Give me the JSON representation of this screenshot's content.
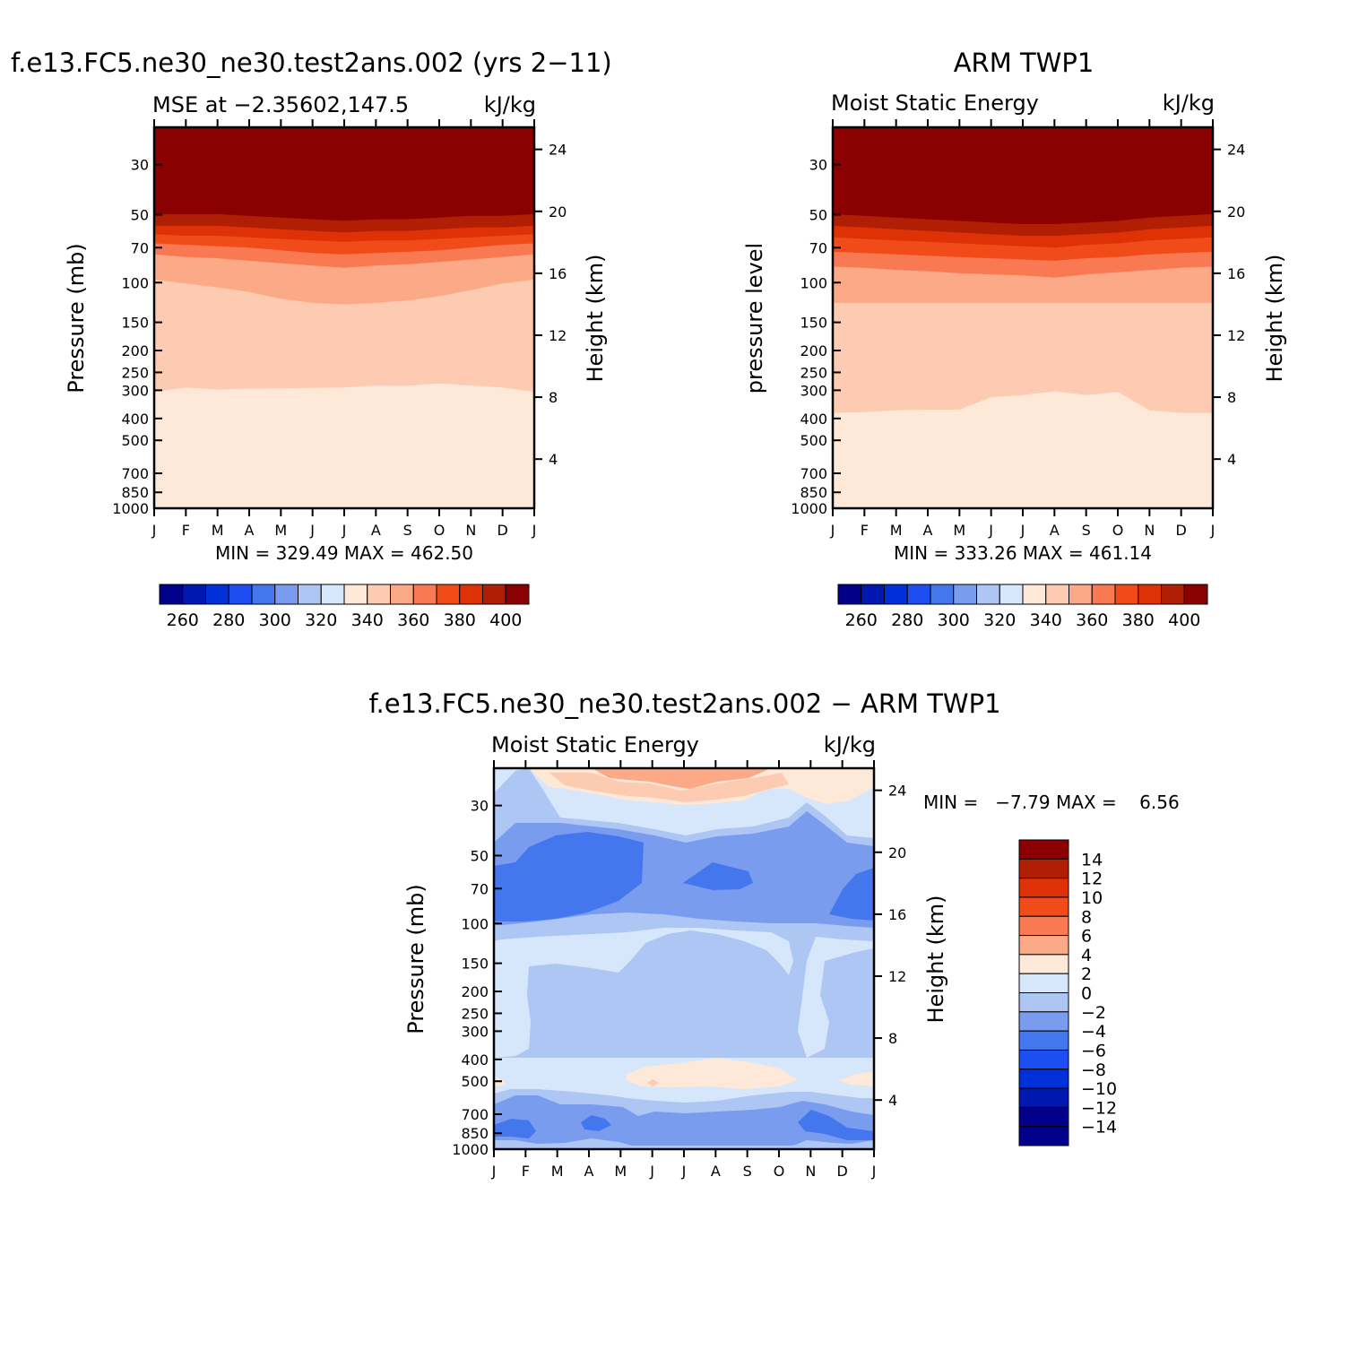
{
  "chart_data": [
    {
      "type": "heatmap",
      "id": "model",
      "title": "f.e13.FC5.ne30_ne30.test2ans.002 (yrs 2−11)",
      "subtitle_left": "MSE at −2.35602,147.5",
      "subtitle_right": "kJ/kg",
      "ylabel": "Pressure (mb)",
      "ylabel_right": "Height (km)",
      "x_ticks": [
        "J",
        "F",
        "M",
        "A",
        "M",
        "J",
        "J",
        "A",
        "S",
        "O",
        "N",
        "D",
        "J"
      ],
      "y_ticks": [
        "30",
        "50",
        "70",
        "100",
        "150",
        "200",
        "250",
        "300",
        "400",
        "500",
        "700",
        "850",
        "1000"
      ],
      "height_ticks": [
        "24",
        "20",
        "16",
        "12",
        "8",
        "4"
      ],
      "stats": "MIN = 329.49 MAX = 462.50",
      "colorbar_labels": [
        "260",
        "280",
        "300",
        "320",
        "340",
        "360",
        "380",
        "400"
      ],
      "contour_levels": [
        250,
        260,
        270,
        280,
        290,
        300,
        310,
        320,
        330,
        340,
        350,
        360,
        370,
        380,
        390,
        400
      ],
      "profile_note": "contour level boundaries (mb) by month J..J",
      "boundaries": [
        {
          "level": 340,
          "p": [
            305,
            292,
            298,
            295,
            294,
            293,
            292,
            286,
            287,
            280,
            286,
            292,
            305
          ]
        },
        {
          "level": 350,
          "p": [
            97,
            101,
            105,
            110,
            118,
            123,
            125,
            123,
            120,
            115,
            108,
            101,
            97
          ]
        },
        {
          "level": 360,
          "p": [
            75,
            77,
            78,
            80,
            82,
            84,
            86,
            84,
            83,
            81,
            79,
            77,
            75
          ]
        },
        {
          "level": 370,
          "p": [
            67,
            68,
            69,
            70,
            72,
            74,
            75,
            74,
            73,
            72,
            70,
            68,
            67
          ]
        },
        {
          "level": 380,
          "p": [
            61,
            62,
            62,
            63,
            64,
            65,
            66,
            65,
            65,
            64,
            63,
            62,
            61
          ]
        },
        {
          "level": 390,
          "p": [
            56,
            56,
            56,
            57,
            58,
            59,
            60,
            59,
            59,
            58,
            57,
            57,
            56
          ]
        }
      ]
    },
    {
      "type": "heatmap",
      "id": "obs",
      "title": "ARM TWP1",
      "subtitle_left": "Moist Static Energy",
      "subtitle_right": "kJ/kg",
      "ylabel": "pressure level",
      "ylabel_right": "Height (km)",
      "x_ticks": [
        "J",
        "F",
        "M",
        "A",
        "M",
        "J",
        "J",
        "A",
        "S",
        "O",
        "N",
        "D",
        "J"
      ],
      "y_ticks": [
        "30",
        "50",
        "70",
        "100",
        "150",
        "200",
        "250",
        "300",
        "400",
        "500",
        "700",
        "850",
        "1000"
      ],
      "height_ticks": [
        "24",
        "20",
        "16",
        "12",
        "8",
        "4"
      ],
      "stats": "MIN = 333.26 MAX = 461.14",
      "colorbar_labels": [
        "260",
        "280",
        "300",
        "320",
        "340",
        "360",
        "380",
        "400"
      ],
      "contour_levels": [
        250,
        260,
        270,
        280,
        290,
        300,
        310,
        320,
        330,
        340,
        350,
        360,
        370,
        380,
        390,
        400
      ],
      "boundaries": [
        {
          "level": 340,
          "p": [
            378,
            375,
            368,
            366,
            366,
            322,
            315,
            303,
            315,
            305,
            368,
            378,
            378
          ]
        },
        {
          "level": 350,
          "p": [
            123,
            123,
            123,
            123,
            123,
            123,
            123,
            123,
            123,
            123,
            123,
            123,
            123
          ]
        },
        {
          "level": 360,
          "p": [
            85,
            86,
            88,
            89,
            91,
            92,
            93,
            95,
            92,
            90,
            88,
            86,
            85
          ]
        },
        {
          "level": 370,
          "p": [
            73,
            74,
            75,
            76,
            77,
            78,
            79,
            80,
            78,
            77,
            75,
            74,
            73
          ]
        },
        {
          "level": 380,
          "p": [
            63,
            64,
            65,
            66,
            67,
            68,
            69,
            70,
            68,
            67,
            65,
            64,
            63
          ]
        },
        {
          "level": 390,
          "p": [
            56,
            57,
            58,
            59,
            60,
            61,
            62,
            62,
            61,
            60,
            58,
            57,
            56
          ]
        }
      ]
    },
    {
      "type": "heatmap",
      "id": "diff",
      "title": "f.e13.FC5.ne30_ne30.test2ans.002 − ARM TWP1",
      "subtitle_left": "Moist Static Energy",
      "subtitle_right": "kJ/kg",
      "ylabel": "Pressure (mb)",
      "ylabel_right": "Height (km)",
      "x_ticks": [
        "J",
        "F",
        "M",
        "A",
        "M",
        "J",
        "J",
        "A",
        "S",
        "O",
        "N",
        "D",
        "J"
      ],
      "y_ticks": [
        "30",
        "50",
        "70",
        "100",
        "150",
        "200",
        "250",
        "300",
        "400",
        "500",
        "700",
        "850",
        "1000"
      ],
      "height_ticks": [
        "24",
        "20",
        "16",
        "12",
        "8",
        "4"
      ],
      "stats": "MIN =   −7.79 MAX =    6.56",
      "colorbar_labels": [
        "14",
        "12",
        "10",
        "8",
        "6",
        "4",
        "2",
        "0",
        "−2",
        "−4",
        "−6",
        "−8",
        "−10",
        "−12",
        "−14"
      ],
      "contour_levels": [
        -14,
        -12,
        -10,
        -8,
        -6,
        -4,
        -2,
        0,
        2,
        4,
        6,
        8,
        10,
        12,
        14
      ]
    }
  ],
  "colors": {
    "mse_scale": [
      "#00008b",
      "#0018b0",
      "#0030d8",
      "#1c4ef2",
      "#4476ee",
      "#7a9cef",
      "#aec6f4",
      "#d6e6fb",
      "#fee9d9",
      "#fdcbb2",
      "#fca987",
      "#f97a52",
      "#f24b1a",
      "#de3106",
      "#b01e04",
      "#8b0000"
    ],
    "diff_scale_top_to_bottom": [
      "#8b0000",
      "#b01e04",
      "#de3106",
      "#f24b1a",
      "#f97a52",
      "#fca987",
      "#fee9d9",
      "#d6e6fb",
      "#aec6f4",
      "#7a9cef",
      "#4476ee",
      "#1c4ef2",
      "#0030d8",
      "#0018b0",
      "#00008b"
    ]
  }
}
